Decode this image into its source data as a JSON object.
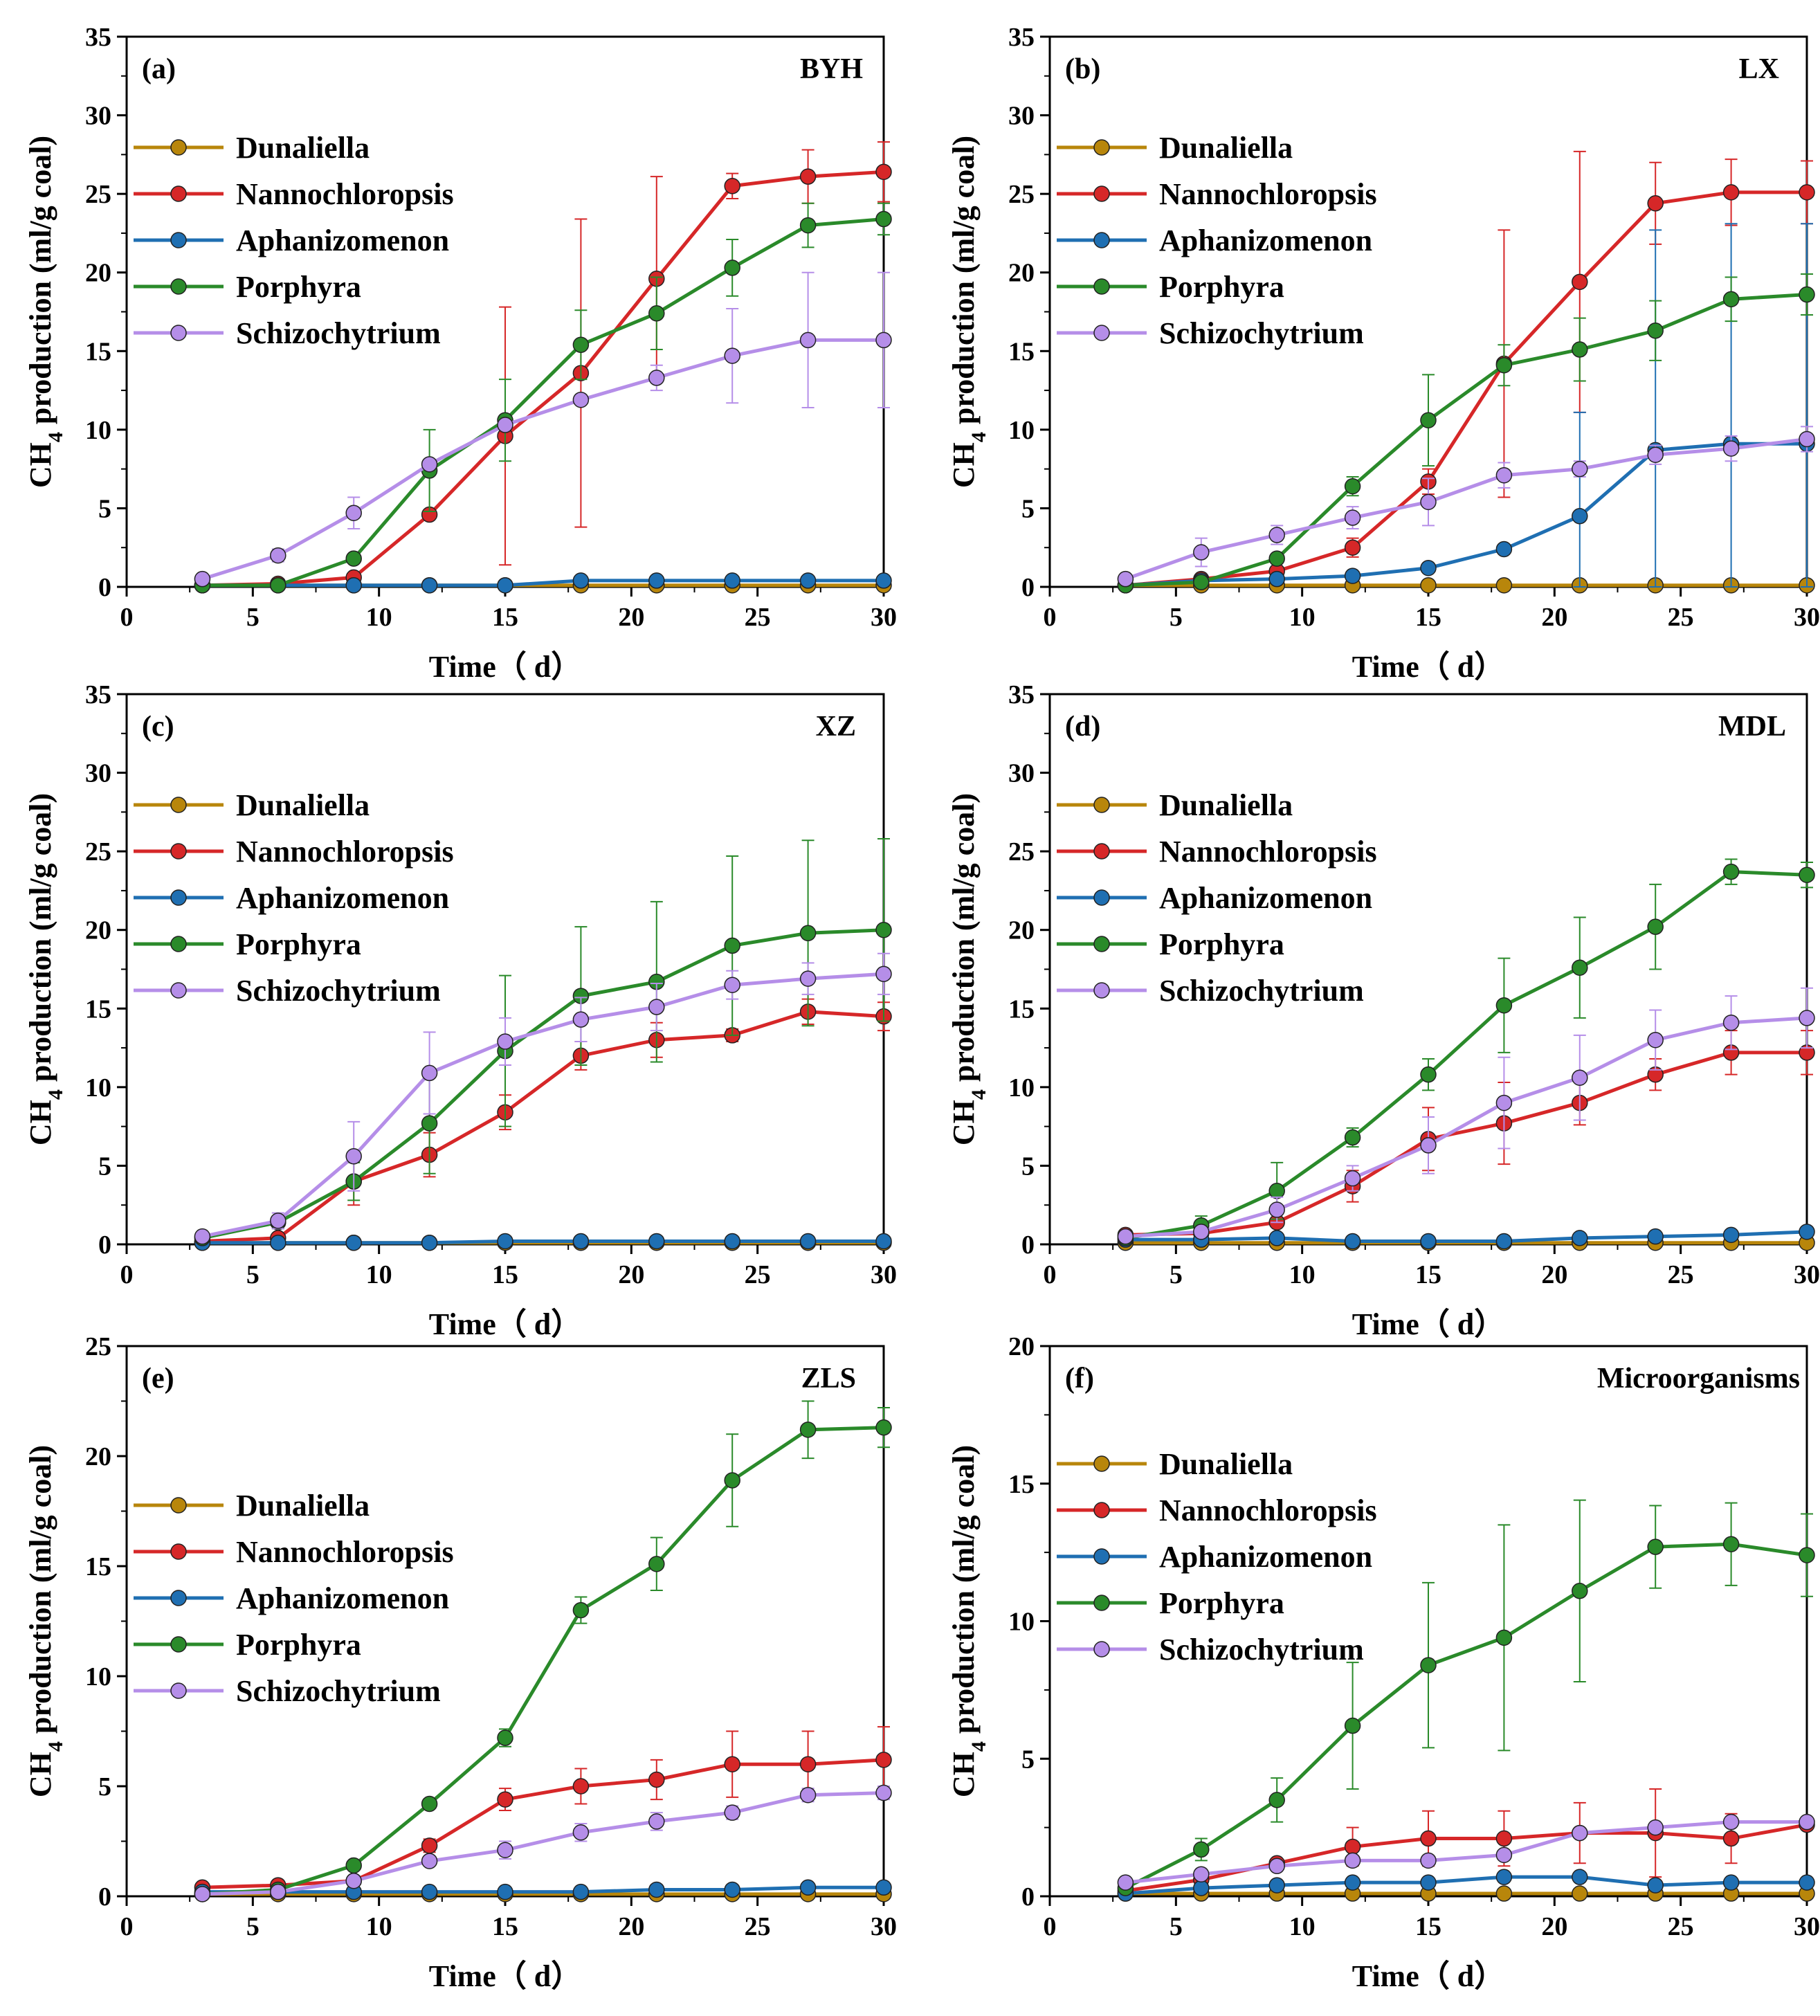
{
  "colors": {
    "Dunaliella": "#b8860b",
    "Nannochloropsis": "#d62728",
    "Aphanizomenon": "#1f6fb2",
    "Porphyra": "#2a8a2a",
    "Schizochytrium": "#b58ee8"
  },
  "chart_data": [
    {
      "type": "line",
      "panel": "(a)",
      "title": "BYH",
      "xlabel": "Time（ d）",
      "ylabel": "CH4 production (ml/g coal)",
      "xlim": [
        0,
        30
      ],
      "ylim": [
        0,
        35
      ],
      "xticks": [
        "0",
        "5",
        "10",
        "15",
        "20",
        "25",
        "30"
      ],
      "yticks": [
        "0",
        "5",
        "10",
        "15",
        "20",
        "25",
        "30",
        "35"
      ],
      "x": [
        3,
        6,
        9,
        12,
        15,
        18,
        21,
        24,
        27,
        30
      ],
      "series": [
        {
          "name": "Dunaliella",
          "values": [
            0.1,
            0.1,
            0.1,
            0.1,
            0.1,
            0.1,
            0.1,
            0.1,
            0.1,
            0.1
          ],
          "errors": [
            0,
            0,
            0,
            0,
            0,
            0,
            0,
            0,
            0,
            0
          ]
        },
        {
          "name": "Nannochloropsis",
          "values": [
            0.1,
            0.2,
            0.6,
            4.6,
            9.6,
            13.6,
            19.6,
            25.5,
            26.1,
            26.4
          ],
          "errors": [
            0,
            0,
            0,
            0,
            8.2,
            9.8,
            6.5,
            0.8,
            1.7,
            1.9
          ]
        },
        {
          "name": "Aphanizomenon",
          "values": [
            0.1,
            0.1,
            0.1,
            0.1,
            0.1,
            0.4,
            0.4,
            0.4,
            0.4,
            0.4
          ],
          "errors": [
            0,
            0,
            0,
            0,
            0,
            0,
            0,
            0,
            0,
            0
          ]
        },
        {
          "name": "Porphyra",
          "values": [
            0.1,
            0.1,
            1.8,
            7.4,
            10.6,
            15.4,
            17.4,
            20.3,
            23.0,
            23.4
          ],
          "errors": [
            0,
            0,
            0,
            2.6,
            2.6,
            2.2,
            2.3,
            1.8,
            1.4,
            1.0
          ]
        },
        {
          "name": "Schizochytrium",
          "values": [
            0.5,
            2.0,
            4.7,
            7.8,
            10.3,
            11.9,
            13.3,
            14.7,
            15.7,
            15.7
          ],
          "errors": [
            0,
            0.4,
            1.0,
            0,
            0,
            0,
            0.8,
            3.0,
            4.3,
            4.3
          ]
        }
      ]
    },
    {
      "type": "line",
      "panel": "(b)",
      "title": "LX",
      "xlabel": "Time（ d）",
      "ylabel": "CH4 production (ml/g coal)",
      "xlim": [
        0,
        30
      ],
      "ylim": [
        0,
        35
      ],
      "xticks": [
        "0",
        "5",
        "10",
        "15",
        "20",
        "25",
        "30"
      ],
      "yticks": [
        "0",
        "5",
        "10",
        "15",
        "20",
        "25",
        "30",
        "35"
      ],
      "x": [
        3,
        6,
        9,
        12,
        15,
        18,
        21,
        24,
        27,
        30
      ],
      "series": [
        {
          "name": "Dunaliella",
          "values": [
            0.1,
            0.1,
            0.1,
            0.1,
            0.1,
            0.1,
            0.1,
            0.1,
            0.1,
            0.1
          ],
          "errors": [
            0,
            0,
            0,
            0,
            0,
            0,
            0,
            0,
            0,
            0
          ]
        },
        {
          "name": "Nannochloropsis",
          "values": [
            0.1,
            0.5,
            1.0,
            2.5,
            6.7,
            14.2,
            19.4,
            24.4,
            25.1,
            25.1
          ],
          "errors": [
            0,
            0,
            0,
            0.6,
            0.8,
            8.5,
            8.3,
            2.6,
            2.1,
            2.0
          ]
        },
        {
          "name": "Aphanizomenon",
          "values": [
            0.1,
            0.4,
            0.5,
            0.7,
            1.2,
            2.4,
            4.5,
            8.7,
            9.1,
            9.1
          ],
          "errors": [
            0,
            0,
            0,
            0,
            0,
            0,
            6.6,
            14.0,
            14.0,
            14.0
          ]
        },
        {
          "name": "Porphyra",
          "values": [
            0.1,
            0.3,
            1.8,
            6.4,
            10.6,
            14.1,
            15.1,
            16.3,
            18.3,
            18.6
          ],
          "errors": [
            0,
            0,
            0,
            0.6,
            2.9,
            1.3,
            2.0,
            1.9,
            1.4,
            1.3
          ]
        },
        {
          "name": "Schizochytrium",
          "values": [
            0.5,
            2.2,
            3.3,
            4.4,
            5.4,
            7.1,
            7.5,
            8.4,
            8.8,
            9.4
          ],
          "errors": [
            0,
            0.9,
            0.6,
            0.7,
            1.5,
            0.8,
            0.5,
            0.6,
            0.8,
            0.8
          ]
        }
      ]
    },
    {
      "type": "line",
      "panel": "(c)",
      "title": "XZ",
      "xlabel": "Time（ d）",
      "ylabel": "CH4 production (ml/g coal)",
      "xlim": [
        0,
        30
      ],
      "ylim": [
        0,
        35
      ],
      "xticks": [
        "0",
        "5",
        "10",
        "15",
        "20",
        "25",
        "30"
      ],
      "yticks": [
        "0",
        "5",
        "10",
        "15",
        "20",
        "25",
        "30",
        "35"
      ],
      "x": [
        3,
        6,
        9,
        12,
        15,
        18,
        21,
        24,
        27,
        30
      ],
      "series": [
        {
          "name": "Dunaliella",
          "values": [
            0.1,
            0.1,
            0.1,
            0.1,
            0.1,
            0.1,
            0.1,
            0.1,
            0.1,
            0.1
          ],
          "errors": [
            0,
            0,
            0,
            0,
            0,
            0,
            0,
            0,
            0,
            0
          ]
        },
        {
          "name": "Nannochloropsis",
          "values": [
            0.2,
            0.4,
            4.0,
            5.7,
            8.4,
            12.0,
            13.0,
            13.3,
            14.8,
            14.5
          ],
          "errors": [
            0,
            0,
            1.5,
            1.4,
            1.1,
            0.9,
            1.1,
            0.4,
            0.8,
            0.9
          ]
        },
        {
          "name": "Aphanizomenon",
          "values": [
            0.1,
            0.1,
            0.1,
            0.1,
            0.2,
            0.2,
            0.2,
            0.2,
            0.2,
            0.2
          ],
          "errors": [
            0,
            0,
            0,
            0,
            0,
            0,
            0,
            0,
            0,
            0
          ]
        },
        {
          "name": "Porphyra",
          "values": [
            0.4,
            1.4,
            4.0,
            7.7,
            12.3,
            15.8,
            16.7,
            19.0,
            19.8,
            20.0
          ],
          "errors": [
            0,
            0.4,
            1.2,
            3.2,
            4.8,
            4.4,
            5.1,
            5.7,
            5.9,
            5.8
          ]
        },
        {
          "name": "Schizochytrium",
          "values": [
            0.5,
            1.5,
            5.6,
            10.9,
            12.9,
            14.3,
            15.1,
            16.5,
            16.9,
            17.2
          ],
          "errors": [
            0,
            0.5,
            2.2,
            2.6,
            1.5,
            1.4,
            1.5,
            0.9,
            1.0,
            1.3
          ]
        }
      ]
    },
    {
      "type": "line",
      "panel": "(d)",
      "title": "MDL",
      "xlabel": "Time（ d）",
      "ylabel": "CH4 production (ml/g coal)",
      "xlim": [
        0,
        30
      ],
      "ylim": [
        0,
        35
      ],
      "xticks": [
        "0",
        "5",
        "10",
        "15",
        "20",
        "25",
        "30"
      ],
      "yticks": [
        "0",
        "5",
        "10",
        "15",
        "20",
        "25",
        "30",
        "35"
      ],
      "x": [
        3,
        6,
        9,
        12,
        15,
        18,
        21,
        24,
        27,
        30
      ],
      "series": [
        {
          "name": "Dunaliella",
          "values": [
            0.1,
            0.1,
            0.1,
            0.1,
            0.1,
            0.1,
            0.1,
            0.1,
            0.1,
            0.1
          ],
          "errors": [
            0,
            0,
            0,
            0,
            0,
            0,
            0,
            0,
            0,
            0
          ]
        },
        {
          "name": "Nannochloropsis",
          "values": [
            0.6,
            0.7,
            1.4,
            3.7,
            6.7,
            7.7,
            9.0,
            10.8,
            12.2,
            12.2
          ],
          "errors": [
            0,
            0,
            0,
            1.0,
            2.0,
            2.6,
            1.4,
            1.0,
            1.4,
            1.4
          ]
        },
        {
          "name": "Aphanizomenon",
          "values": [
            0.3,
            0.3,
            0.4,
            0.2,
            0.2,
            0.2,
            0.4,
            0.5,
            0.6,
            0.8
          ],
          "errors": [
            0,
            0,
            0,
            0,
            0,
            0,
            0,
            0,
            0,
            0
          ]
        },
        {
          "name": "Porphyra",
          "values": [
            0.4,
            1.2,
            3.4,
            6.8,
            10.8,
            15.2,
            17.6,
            20.2,
            23.7,
            23.5
          ],
          "errors": [
            0,
            0.6,
            1.8,
            0.6,
            1.0,
            3.0,
            3.2,
            2.7,
            0.8,
            0.8
          ]
        },
        {
          "name": "Schizochytrium",
          "values": [
            0.5,
            0.8,
            2.2,
            4.2,
            6.3,
            9.0,
            10.6,
            13.0,
            14.1,
            14.4
          ],
          "errors": [
            0,
            0,
            0.8,
            0.8,
            1.8,
            2.9,
            2.7,
            1.9,
            1.7,
            1.9
          ]
        }
      ]
    },
    {
      "type": "line",
      "panel": "(e)",
      "title": "ZLS",
      "xlabel": "Time（ d）",
      "ylabel": "CH4 production (ml/g coal)",
      "xlim": [
        0,
        30
      ],
      "ylim": [
        0,
        25
      ],
      "xticks": [
        "0",
        "5",
        "10",
        "15",
        "20",
        "25",
        "30"
      ],
      "yticks": [
        "0",
        "5",
        "10",
        "15",
        "20",
        "25"
      ],
      "x": [
        3,
        6,
        9,
        12,
        15,
        18,
        21,
        24,
        27,
        30
      ],
      "series": [
        {
          "name": "Dunaliella",
          "values": [
            0.1,
            0.1,
            0.1,
            0.1,
            0.1,
            0.1,
            0.1,
            0.1,
            0.1,
            0.1
          ],
          "errors": [
            0,
            0,
            0,
            0,
            0,
            0,
            0,
            0,
            0,
            0
          ]
        },
        {
          "name": "Nannochloropsis",
          "values": [
            0.4,
            0.5,
            0.7,
            2.3,
            4.4,
            5.0,
            5.3,
            6.0,
            6.0,
            6.2
          ],
          "errors": [
            0,
            0,
            0,
            0.3,
            0.5,
            0.8,
            0.9,
            1.5,
            1.5,
            1.5
          ]
        },
        {
          "name": "Aphanizomenon",
          "values": [
            0.2,
            0.2,
            0.2,
            0.2,
            0.2,
            0.2,
            0.3,
            0.3,
            0.4,
            0.4
          ],
          "errors": [
            0,
            0,
            0,
            0,
            0,
            0,
            0,
            0,
            0,
            0
          ]
        },
        {
          "name": "Porphyra",
          "values": [
            0.1,
            0.3,
            1.4,
            4.2,
            7.2,
            13.0,
            15.1,
            18.9,
            21.2,
            21.3
          ],
          "errors": [
            0,
            0,
            0,
            0.2,
            0.4,
            0.6,
            1.2,
            2.1,
            1.3,
            0.9
          ]
        },
        {
          "name": "Schizochytrium",
          "values": [
            0.1,
            0.2,
            0.7,
            1.6,
            2.1,
            2.9,
            3.4,
            3.8,
            4.6,
            4.7
          ],
          "errors": [
            0,
            0,
            0,
            0,
            0.4,
            0.4,
            0.4,
            0.3,
            0.3,
            0.3
          ]
        }
      ]
    },
    {
      "type": "line",
      "panel": "(f)",
      "title": "Microorganisms",
      "xlabel": "Time（ d）",
      "ylabel": "CH4 production (ml/g coal)",
      "xlim": [
        0,
        30
      ],
      "ylim": [
        0,
        20
      ],
      "xticks": [
        "0",
        "5",
        "10",
        "15",
        "20",
        "25",
        "30"
      ],
      "yticks": [
        "0",
        "5",
        "10",
        "15",
        "20"
      ],
      "x": [
        3,
        6,
        9,
        12,
        15,
        18,
        21,
        24,
        27,
        30
      ],
      "series": [
        {
          "name": "Dunaliella",
          "values": [
            0.1,
            0.1,
            0.1,
            0.1,
            0.1,
            0.1,
            0.1,
            0.1,
            0.1,
            0.1
          ],
          "errors": [
            0,
            0,
            0,
            0,
            0,
            0,
            0,
            0,
            0,
            0
          ]
        },
        {
          "name": "Nannochloropsis",
          "values": [
            0.2,
            0.6,
            1.2,
            1.8,
            2.1,
            2.1,
            2.3,
            2.3,
            2.1,
            2.6
          ],
          "errors": [
            0,
            0,
            0,
            0.7,
            1.0,
            1.0,
            1.1,
            1.6,
            0.9,
            0
          ]
        },
        {
          "name": "Aphanizomenon",
          "values": [
            0.1,
            0.3,
            0.4,
            0.5,
            0.5,
            0.7,
            0.7,
            0.4,
            0.5,
            0.5
          ],
          "errors": [
            0,
            0,
            0,
            0,
            0,
            0,
            0,
            0,
            0,
            0
          ]
        },
        {
          "name": "Porphyra",
          "values": [
            0.3,
            1.7,
            3.5,
            6.2,
            8.4,
            9.4,
            11.1,
            12.7,
            12.8,
            12.4
          ],
          "errors": [
            0,
            0.4,
            0.8,
            2.3,
            3.0,
            4.1,
            3.3,
            1.5,
            1.5,
            1.5
          ]
        },
        {
          "name": "Schizochytrium",
          "values": [
            0.5,
            0.8,
            1.1,
            1.3,
            1.3,
            1.5,
            2.3,
            2.5,
            2.7,
            2.7
          ],
          "errors": [
            0,
            0,
            0,
            0,
            0,
            0,
            0,
            0,
            0,
            0
          ]
        }
      ]
    }
  ]
}
